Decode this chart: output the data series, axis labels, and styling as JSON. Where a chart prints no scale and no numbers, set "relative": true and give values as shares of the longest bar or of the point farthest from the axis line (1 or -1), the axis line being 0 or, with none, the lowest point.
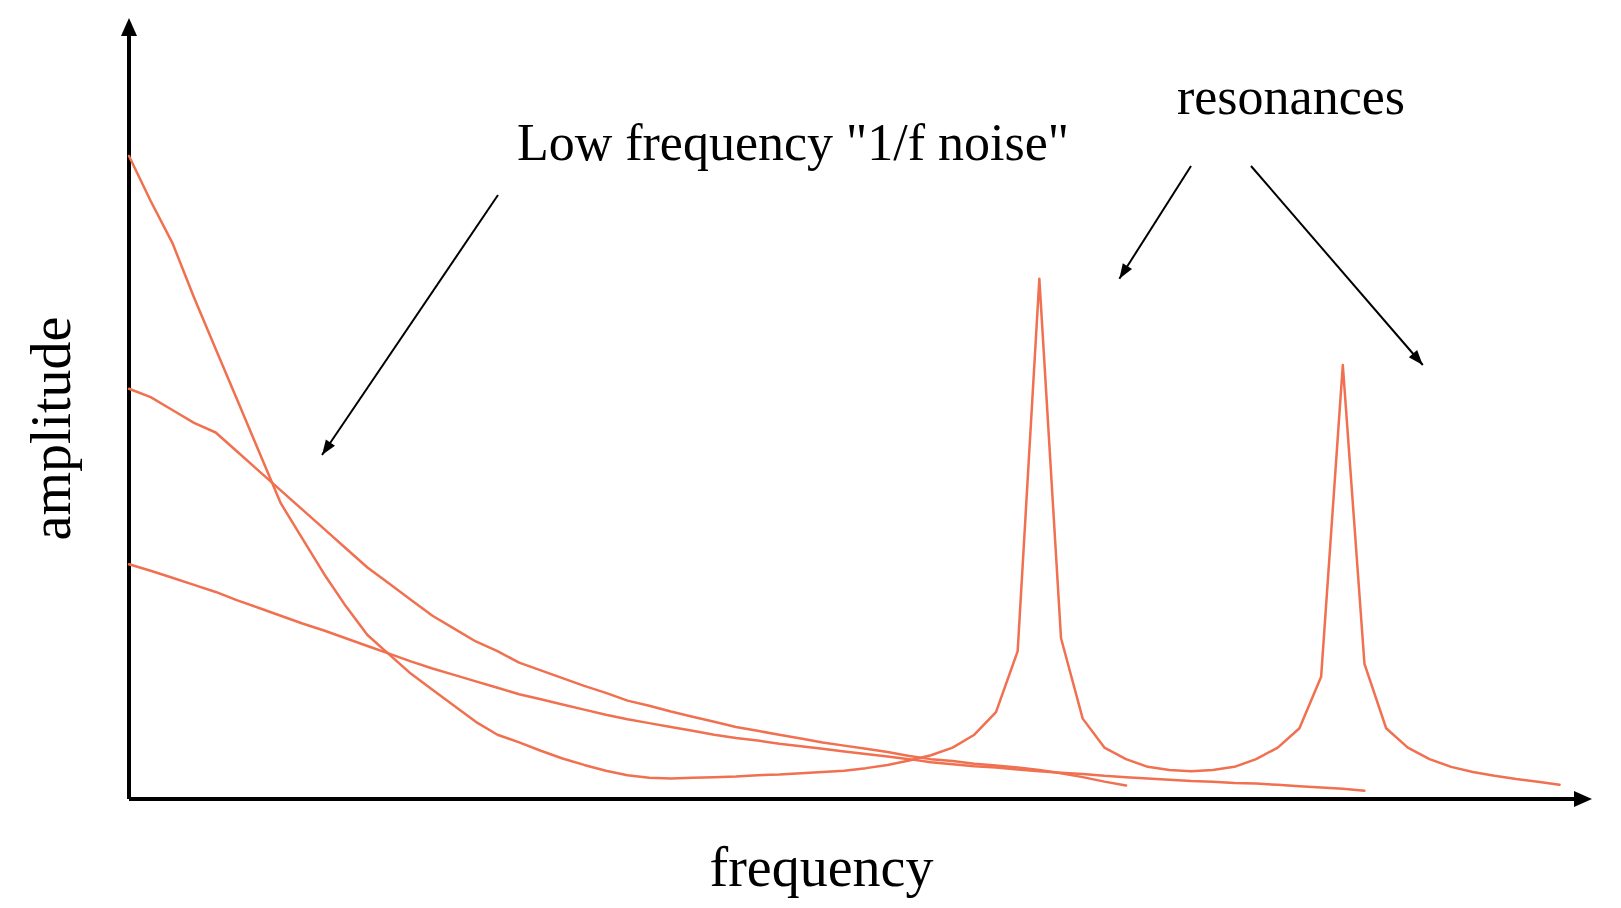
{
  "chart_data": {
    "type": "line",
    "relative": true,
    "xlabel": "frequency",
    "ylabel": "amplitude",
    "line_style": "solid",
    "annotations": [
      "Low frequency \"1/f noise\"",
      "resonances"
    ],
    "categories": [
      null,
      null,
      null,
      null,
      null,
      null,
      null,
      null,
      null,
      null,
      null,
      null,
      null,
      null,
      null,
      null,
      null,
      null,
      null,
      null,
      null,
      null,
      null,
      null,
      null,
      null,
      null,
      null,
      null,
      null,
      null,
      null,
      null,
      null,
      null,
      null,
      null,
      null,
      null,
      null,
      null,
      null,
      null,
      null,
      null,
      null,
      null,
      null,
      null,
      null,
      null,
      null,
      null,
      null,
      null,
      null,
      null,
      null,
      null,
      null,
      null,
      null,
      null,
      null,
      null,
      null,
      null
    ],
    "series": [
      {
        "color": "#f07050",
        "values": [
          1.0,
          0.93,
          0.865,
          0.78,
          0.7,
          0.62,
          0.54,
          0.46,
          0.405,
          0.35,
          0.3,
          0.255,
          0.225,
          0.195,
          0.17,
          0.145,
          0.12,
          0.1,
          0.088,
          0.075,
          0.063,
          0.053,
          0.044,
          0.037,
          0.033,
          0.032,
          0.033,
          0.034,
          0.035,
          0.037,
          0.038,
          0.04,
          0.042,
          0.044,
          0.048,
          0.053,
          0.06,
          0.068,
          0.08,
          0.1,
          0.135,
          0.23,
          0.809,
          0.25,
          0.125,
          0.08,
          0.062,
          0.05,
          0.045,
          0.043,
          0.045,
          0.05,
          0.062,
          0.08,
          0.11,
          0.19,
          0.675,
          0.21,
          0.11,
          0.08,
          0.062,
          0.05,
          0.042,
          0.036,
          0.031,
          0.027,
          0.022
        ]
      },
      {
        "color": "#f07050",
        "values": [
          0.638,
          0.625,
          0.605,
          0.585,
          0.57,
          0.54,
          0.51,
          0.48,
          0.45,
          0.42,
          0.39,
          0.36,
          0.335,
          0.31,
          0.285,
          0.265,
          0.245,
          0.23,
          0.212,
          0.2,
          0.188,
          0.176,
          0.165,
          0.153,
          0.145,
          0.136,
          0.128,
          0.12,
          0.112,
          0.106,
          0.1,
          0.094,
          0.088,
          0.083,
          0.078,
          0.073,
          0.067,
          0.062,
          0.059,
          0.055,
          0.052,
          0.049,
          0.045,
          0.04,
          0.034,
          0.027,
          0.021,
          null,
          null,
          null,
          null,
          null,
          null,
          null,
          null,
          null,
          null,
          null,
          null,
          null,
          null,
          null,
          null,
          null,
          null,
          null,
          null
        ]
      },
      {
        "color": "#f07050",
        "values": [
          0.365,
          0.355,
          0.344,
          0.333,
          0.322,
          0.309,
          0.297,
          0.285,
          0.273,
          0.262,
          0.25,
          0.238,
          0.226,
          0.214,
          0.203,
          0.193,
          0.183,
          0.173,
          0.163,
          0.155,
          0.147,
          0.139,
          0.131,
          0.124,
          0.118,
          0.112,
          0.106,
          0.1,
          0.095,
          0.091,
          0.086,
          0.082,
          0.078,
          0.074,
          0.07,
          0.066,
          0.062,
          0.057,
          0.054,
          0.051,
          0.049,
          0.046,
          0.043,
          0.041,
          0.039,
          0.036,
          0.034,
          0.032,
          0.03,
          0.028,
          0.027,
          0.025,
          0.024,
          0.022,
          0.02,
          0.018,
          0.016,
          0.013,
          null,
          null,
          null,
          null,
          null,
          null,
          null,
          null,
          null
        ]
      }
    ]
  }
}
